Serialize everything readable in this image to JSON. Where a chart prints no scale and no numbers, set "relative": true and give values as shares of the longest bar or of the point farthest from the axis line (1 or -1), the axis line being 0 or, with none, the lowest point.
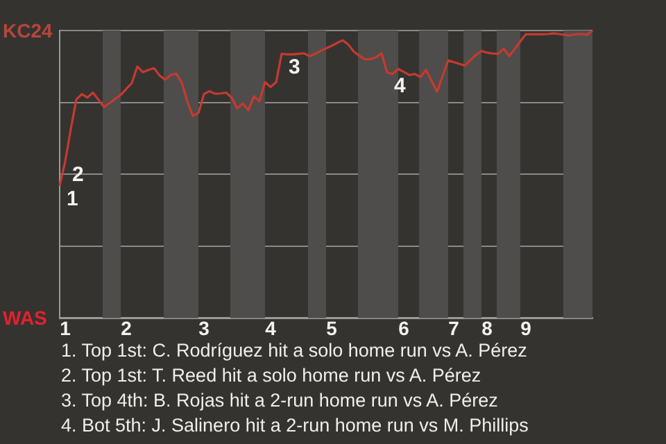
{
  "chart_data": {
    "type": "line",
    "relative": true,
    "categories": [
      null,
      "1",
      null,
      null,
      null,
      null,
      null,
      null,
      null,
      null,
      null,
      null,
      "2",
      null,
      null,
      null,
      null,
      null,
      null,
      null,
      null,
      null,
      null,
      null,
      null,
      null,
      "3",
      null,
      null,
      null,
      null,
      null,
      null,
      null,
      null,
      null,
      null,
      null,
      "4",
      null,
      null,
      null,
      null,
      null,
      null,
      null,
      null,
      null,
      null,
      "5",
      null,
      null,
      null,
      null,
      null,
      null,
      null,
      null,
      null,
      null,
      null,
      null,
      "6",
      null,
      null,
      null,
      null,
      null,
      null,
      null,
      null,
      "7",
      null,
      null,
      null,
      null,
      null,
      "8",
      null,
      null,
      null,
      null,
      null,
      null,
      "9",
      null,
      null,
      null,
      null,
      null,
      null,
      null,
      null,
      null,
      null,
      null,
      null
    ],
    "grid": "y",
    "marker": "none",
    "line_style": "solid",
    "series": [
      {
        "color": "#c63a30",
        "values": [
          0.46,
          0.545,
          0.656,
          0.76,
          0.779,
          0.767,
          0.784,
          0.759,
          0.734,
          0.748,
          0.762,
          0.776,
          0.797,
          0.817,
          0.875,
          0.855,
          0.863,
          0.869,
          0.844,
          0.829,
          0.845,
          0.85,
          0.819,
          0.752,
          0.703,
          0.713,
          0.779,
          0.789,
          0.78,
          0.781,
          0.784,
          0.766,
          0.729,
          0.746,
          0.723,
          0.771,
          0.754,
          0.82,
          0.804,
          0.82,
          0.919,
          0.917,
          0.917,
          0.919,
          0.921,
          0.911,
          0.918,
          0.929,
          0.938,
          0.947,
          0.957,
          0.966,
          0.951,
          0.927,
          0.912,
          0.9,
          0.9,
          0.907,
          0.921,
          0.854,
          0.849,
          0.866,
          0.856,
          0.845,
          0.849,
          0.838,
          0.863,
          0.825,
          0.787,
          0.842,
          0.896,
          0.89,
          0.884,
          0.878,
          0.897,
          0.915,
          0.929,
          0.923,
          0.92,
          0.919,
          0.937,
          0.911,
          0.936,
          0.962,
          0.987,
          0.987,
          0.987,
          0.987,
          0.988,
          0.99,
          0.988,
          0.985,
          0.983,
          0.987,
          0.988,
          0.985,
          1
        ]
      }
    ],
    "annotations": [
      "1",
      "2",
      "3",
      "4",
      "KC24",
      "WAS",
      "1. Top 1st: C. Rodríguez hit a solo home run vs A. Pérez",
      "2. Top 1st: T. Reed hit a solo home run vs A. Pérez",
      "3. Top 4th: B. Rojas hit a 2-run home run vs A. Pérez",
      "4. Bot 5th: J. Salinero hit a 2-run home run vs M. Phillips"
    ]
  }
}
